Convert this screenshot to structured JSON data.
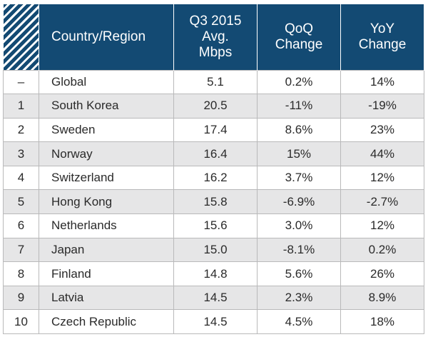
{
  "table": {
    "headers": {
      "country": "Country/Region",
      "mbps": [
        "Q3 2015",
        "Avg.",
        "Mbps"
      ],
      "qoq": [
        "QoQ",
        "Change"
      ],
      "yoy": [
        "YoY",
        "Change"
      ]
    },
    "rows": [
      {
        "rank": "–",
        "country": "Global",
        "mbps": "5.1",
        "qoq": "0.2%",
        "yoy": "14%"
      },
      {
        "rank": "1",
        "country": "South Korea",
        "mbps": "20.5",
        "qoq": "-11%",
        "yoy": "-19%"
      },
      {
        "rank": "2",
        "country": "Sweden",
        "mbps": "17.4",
        "qoq": "8.6%",
        "yoy": "23%"
      },
      {
        "rank": "3",
        "country": "Norway",
        "mbps": "16.4",
        "qoq": "15%",
        "yoy": "44%"
      },
      {
        "rank": "4",
        "country": "Switzerland",
        "mbps": "16.2",
        "qoq": "3.7%",
        "yoy": "12%"
      },
      {
        "rank": "5",
        "country": "Hong Kong",
        "mbps": "15.8",
        "qoq": "-6.9%",
        "yoy": "-2.7%"
      },
      {
        "rank": "6",
        "country": "Netherlands",
        "mbps": "15.6",
        "qoq": "3.0%",
        "yoy": "12%"
      },
      {
        "rank": "7",
        "country": "Japan",
        "mbps": "15.0",
        "qoq": "-8.1%",
        "yoy": "0.2%"
      },
      {
        "rank": "8",
        "country": "Finland",
        "mbps": "14.8",
        "qoq": "5.6%",
        "yoy": "26%"
      },
      {
        "rank": "9",
        "country": "Latvia",
        "mbps": "14.5",
        "qoq": "2.3%",
        "yoy": "8.9%"
      },
      {
        "rank": "10",
        "country": "Czech Republic",
        "mbps": "14.5",
        "qoq": "4.5%",
        "yoy": "18%"
      }
    ]
  },
  "colors": {
    "header_bg": "#134a73",
    "header_text": "#ffffff",
    "stripe_bg": "#e6e6e7",
    "grid_line": "#b9b9ba"
  }
}
